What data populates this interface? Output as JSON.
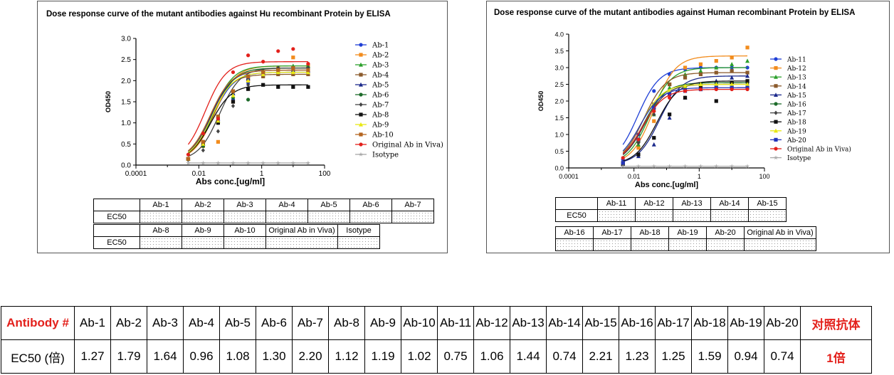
{
  "chart_data": [
    {
      "type": "line",
      "title": "Dose response curve of the mutant antibodies against Hu recombinant Protein by ELISA",
      "xlabel": "Abs conc.[ug/ml]",
      "ylabel": "OD450",
      "xscale": "log",
      "xlim": [
        0.0001,
        100
      ],
      "ylim": [
        0,
        3.0
      ],
      "xticks": [
        0.0001,
        0.01,
        1,
        100
      ],
      "xtick_labels": [
        "0.0001",
        "0.01",
        "1",
        "100"
      ],
      "yticks": [
        0,
        0.5,
        1.0,
        1.5,
        2.0,
        2.5,
        3.0
      ],
      "ytick_labels": [
        "0.0",
        "0.5",
        "1.0",
        "1.5",
        "2.0",
        "2.5",
        "3.0"
      ],
      "legend_position": "right",
      "x": [
        0.0046,
        0.0137,
        0.041,
        0.123,
        0.37,
        1.11,
        3.33,
        10,
        30
      ],
      "series": [
        {
          "name": "Ab-1",
          "color": "#1f3fd6",
          "marker": "circle",
          "top": 2.2,
          "ec50": 0.028,
          "values": [
            0.15,
            0.45,
            1.0,
            1.55,
            1.95,
            2.1,
            2.15,
            2.2,
            2.2
          ]
        },
        {
          "name": "Ab-2",
          "color": "#f28c1d",
          "marker": "square",
          "top": 2.35,
          "ec50": 0.032,
          "values": [
            0.15,
            0.45,
            0.55,
            1.5,
            2.0,
            2.2,
            2.3,
            2.55,
            2.35
          ]
        },
        {
          "name": "Ab-3",
          "color": "#2ca02c",
          "marker": "triangle",
          "top": 2.35,
          "ec50": 0.027,
          "values": [
            0.15,
            0.5,
            1.05,
            1.7,
            2.1,
            2.25,
            2.3,
            2.35,
            2.35
          ]
        },
        {
          "name": "Ab-4",
          "color": "#8b5a2b",
          "marker": "square",
          "top": 2.15,
          "ec50": 0.022,
          "values": [
            0.15,
            0.55,
            1.15,
            1.75,
            2.05,
            2.1,
            2.15,
            2.15,
            2.15
          ]
        },
        {
          "name": "Ab-5",
          "color": "#1c2a8c",
          "marker": "triangle",
          "top": 2.25,
          "ec50": 0.025,
          "values": [
            0.15,
            0.5,
            1.1,
            1.7,
            2.05,
            2.2,
            2.2,
            2.25,
            2.25
          ]
        },
        {
          "name": "Ab-6",
          "color": "#1d6b2a",
          "marker": "circle",
          "top": 2.3,
          "ec50": 0.029,
          "values": [
            0.15,
            0.45,
            1.0,
            1.6,
            1.55,
            2.2,
            2.25,
            2.3,
            2.3
          ]
        },
        {
          "name": "Ab-7",
          "color": "#444444",
          "marker": "diamond",
          "top": 2.3,
          "ec50": 0.045,
          "values": [
            0.12,
            0.35,
            0.8,
            1.4,
            1.9,
            2.2,
            2.3,
            2.3,
            2.3
          ]
        },
        {
          "name": "Ab-8",
          "color": "#111111",
          "marker": "square",
          "top": 1.9,
          "ec50": 0.024,
          "values": [
            0.15,
            0.5,
            1.0,
            1.5,
            1.8,
            1.9,
            1.85,
            1.85,
            1.85
          ]
        },
        {
          "name": "Ab-9",
          "color": "#e8e813",
          "marker": "triangle",
          "top": 2.2,
          "ec50": 0.026,
          "values": [
            0.15,
            0.5,
            1.05,
            1.65,
            2.0,
            2.15,
            2.2,
            2.2,
            2.2
          ]
        },
        {
          "name": "Ab-10",
          "color": "#b4651f",
          "marker": "square",
          "top": 2.25,
          "ec50": 0.023,
          "values": [
            0.15,
            0.55,
            1.15,
            1.75,
            2.1,
            2.2,
            2.25,
            2.3,
            2.25
          ]
        },
        {
          "name": "Original Ab in Viva)",
          "color": "#e3201b",
          "marker": "circle",
          "top": 2.45,
          "ec50": 0.016,
          "values": [
            0.25,
            0.75,
            1.1,
            2.2,
            2.6,
            2.45,
            2.7,
            2.75,
            2.4
          ]
        },
        {
          "name": "Isotype",
          "color": "#a8a8a8",
          "marker": "star",
          "top": 0.05,
          "ec50": 1.0,
          "values": [
            0.05,
            0.05,
            0.05,
            0.05,
            0.05,
            0.05,
            0.05,
            0.05,
            0.05
          ]
        }
      ]
    },
    {
      "type": "line",
      "title": "Dose response curve of the mutant antibodies against Human recombinant Protein by ELISA",
      "xlabel": "Abs conc.[ug/ml]",
      "ylabel": "OD450",
      "xscale": "log",
      "xlim": [
        0.0001,
        100
      ],
      "ylim": [
        0,
        4.0
      ],
      "xticks": [
        0.0001,
        0.01,
        1,
        100
      ],
      "xtick_labels": [
        "0.0001",
        "0.01",
        "1",
        "100"
      ],
      "yticks": [
        0,
        0.5,
        1.0,
        1.5,
        2.0,
        2.5,
        3.0,
        3.5,
        4.0
      ],
      "ytick_labels": [
        "0.0",
        "0.5",
        "1.0",
        "1.5",
        "2.0",
        "2.5",
        "3.0",
        "3.5",
        "4.0"
      ],
      "legend_position": "right",
      "x": [
        0.0046,
        0.0137,
        0.041,
        0.123,
        0.37,
        1.11,
        3.33,
        10,
        30
      ],
      "series": [
        {
          "name": "Ab-11",
          "color": "#1f3fd6",
          "marker": "circle",
          "top": 3.0,
          "ec50": 0.013,
          "values": [
            0.25,
            1.0,
            2.3,
            2.8,
            2.95,
            3.0,
            3.0,
            3.0,
            3.0
          ]
        },
        {
          "name": "Ab-12",
          "color": "#f28c1d",
          "marker": "square",
          "top": 3.35,
          "ec50": 0.04,
          "values": [
            0.15,
            0.6,
            1.4,
            2.5,
            3.0,
            3.1,
            3.2,
            3.3,
            3.6
          ]
        },
        {
          "name": "Ab-13",
          "color": "#2ca02c",
          "marker": "triangle",
          "top": 3.0,
          "ec50": 0.03,
          "values": [
            0.15,
            0.7,
            1.6,
            2.4,
            2.8,
            2.9,
            3.0,
            3.1,
            3.2
          ]
        },
        {
          "name": "Ab-14",
          "color": "#8b5a2b",
          "marker": "square",
          "top": 2.85,
          "ec50": 0.02,
          "values": [
            0.15,
            0.8,
            1.9,
            2.5,
            2.7,
            2.8,
            2.85,
            2.9,
            2.85
          ]
        },
        {
          "name": "Ab-15",
          "color": "#1c2a8c",
          "marker": "triangle",
          "top": 2.75,
          "ec50": 0.06,
          "values": [
            0.1,
            0.35,
            0.7,
            1.5,
            2.1,
            2.5,
            2.6,
            2.7,
            2.75
          ]
        },
        {
          "name": "Ab-16",
          "color": "#1d6b2a",
          "marker": "circle",
          "top": 2.55,
          "ec50": 0.02,
          "values": [
            0.15,
            0.8,
            1.7,
            2.2,
            2.4,
            2.5,
            2.5,
            2.55,
            2.55
          ]
        },
        {
          "name": "Ab-17",
          "color": "#444444",
          "marker": "diamond",
          "top": 2.5,
          "ec50": 0.021,
          "values": [
            0.15,
            0.75,
            1.6,
            2.1,
            2.35,
            2.45,
            2.5,
            2.5,
            2.5
          ]
        },
        {
          "name": "Ab-18",
          "color": "#111111",
          "marker": "square",
          "top": 2.6,
          "ec50": 0.05,
          "values": [
            0.1,
            0.4,
            0.9,
            1.6,
            2.1,
            2.4,
            2.0,
            2.55,
            2.6
          ]
        },
        {
          "name": "Ab-19",
          "color": "#e8e813",
          "marker": "triangle",
          "top": 2.5,
          "ec50": 0.016,
          "values": [
            0.15,
            0.85,
            1.8,
            2.3,
            2.45,
            2.5,
            2.5,
            2.5,
            2.5
          ]
        },
        {
          "name": "Ab-20",
          "color": "#2233bb",
          "marker": "square",
          "top": 2.4,
          "ec50": 0.015,
          "values": [
            0.15,
            0.85,
            1.8,
            2.2,
            2.3,
            2.35,
            2.4,
            2.4,
            2.4
          ]
        },
        {
          "name": "Original Ab in Viva)",
          "color": "#e3201b",
          "marker": "circle",
          "top": 2.35,
          "ec50": 0.018,
          "values": [
            0.3,
            0.85,
            1.7,
            2.1,
            2.3,
            2.35,
            2.35,
            2.35,
            2.35
          ]
        },
        {
          "name": "Isotype",
          "color": "#a8a8a8",
          "marker": "star",
          "top": 0.05,
          "ec50": 1.0,
          "values": [
            0.05,
            0.05,
            0.05,
            0.05,
            0.05,
            0.05,
            0.05,
            0.05,
            0.05
          ]
        }
      ]
    }
  ],
  "left_ec50_table": {
    "row1_headers": [
      "Ab-1",
      "Ab-2",
      "Ab-3",
      "Ab-4",
      "Ab-5",
      "Ab-6",
      "Ab-7"
    ],
    "row2_headers": [
      "Ab-8",
      "Ab-9",
      "Ab-10",
      "Original Ab in Viva)",
      "Isotype"
    ],
    "row_label": "EC50"
  },
  "right_ec50_table": {
    "row1_headers": [
      "Ab-11",
      "Ab-12",
      "Ab-13",
      "Ab-14",
      "Ab-15"
    ],
    "row2_headers": [
      "Ab-16",
      "Ab-17",
      "Ab-18",
      "Ab-19",
      "Ab-20",
      "Original Ab in Viva)"
    ],
    "row_label": "EC50"
  },
  "summary_table": {
    "header_label": "Antibody #",
    "value_label": "EC50 (倍)",
    "antibodies": [
      "Ab-1",
      "Ab-2",
      "Ab-3",
      "Ab-4",
      "Ab-5",
      "Ab-6",
      "Ab-7",
      "Ab-8",
      "Ab-9",
      "Ab-10",
      "Ab-11",
      "Ab-12",
      "Ab-13",
      "Ab-14",
      "Ab-15",
      "Ab-16",
      "Ab-17",
      "Ab-18",
      "Ab-19",
      "Ab-20"
    ],
    "ec50_fold": [
      "1.27",
      "1.79",
      "1.64",
      "0.96",
      "1.08",
      "1.30",
      "2.20",
      "1.12",
      "1.19",
      "1.02",
      "0.75",
      "1.06",
      "1.44",
      "0.74",
      "2.21",
      "1.23",
      "1.25",
      "1.59",
      "0.94",
      "0.74"
    ],
    "control_label": "对照抗体",
    "control_value": "1倍",
    "accent_color": "#e3201b"
  }
}
